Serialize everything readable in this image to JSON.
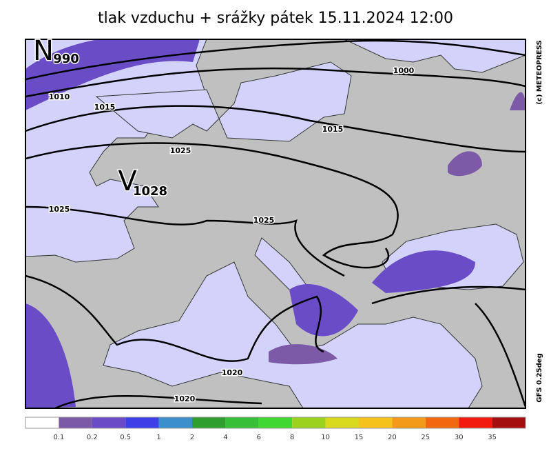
{
  "title": "tlak vzduchu + srážky   pátek 15.11.2024 12:00",
  "pressure_centers": [
    {
      "letter": "N",
      "value": "990"
    },
    {
      "letter": "V",
      "value": "1028"
    }
  ],
  "isobar_labels": [
    "1000",
    "1010",
    "1015",
    "1015",
    "1025",
    "1025",
    "1025",
    "1020",
    "1020"
  ],
  "copyright": "(c) METEOPRESS",
  "model": "GFS 0.25deg",
  "legend": {
    "labels": [
      "0.1",
      "0.2",
      "0.5",
      "1",
      "2",
      "4",
      "6",
      "8",
      "10",
      "15",
      "20",
      "25",
      "30",
      "35"
    ],
    "colors": [
      "#ffffff",
      "#7d5aa8",
      "#6a4cc6",
      "#3f3fe8",
      "#3a8fcc",
      "#2e9e2e",
      "#38bf38",
      "#40d830",
      "#9ad21e",
      "#d8d81c",
      "#f4c21a",
      "#f39a1a",
      "#f2680f",
      "#f21a0e",
      "#a50e0e"
    ]
  }
}
